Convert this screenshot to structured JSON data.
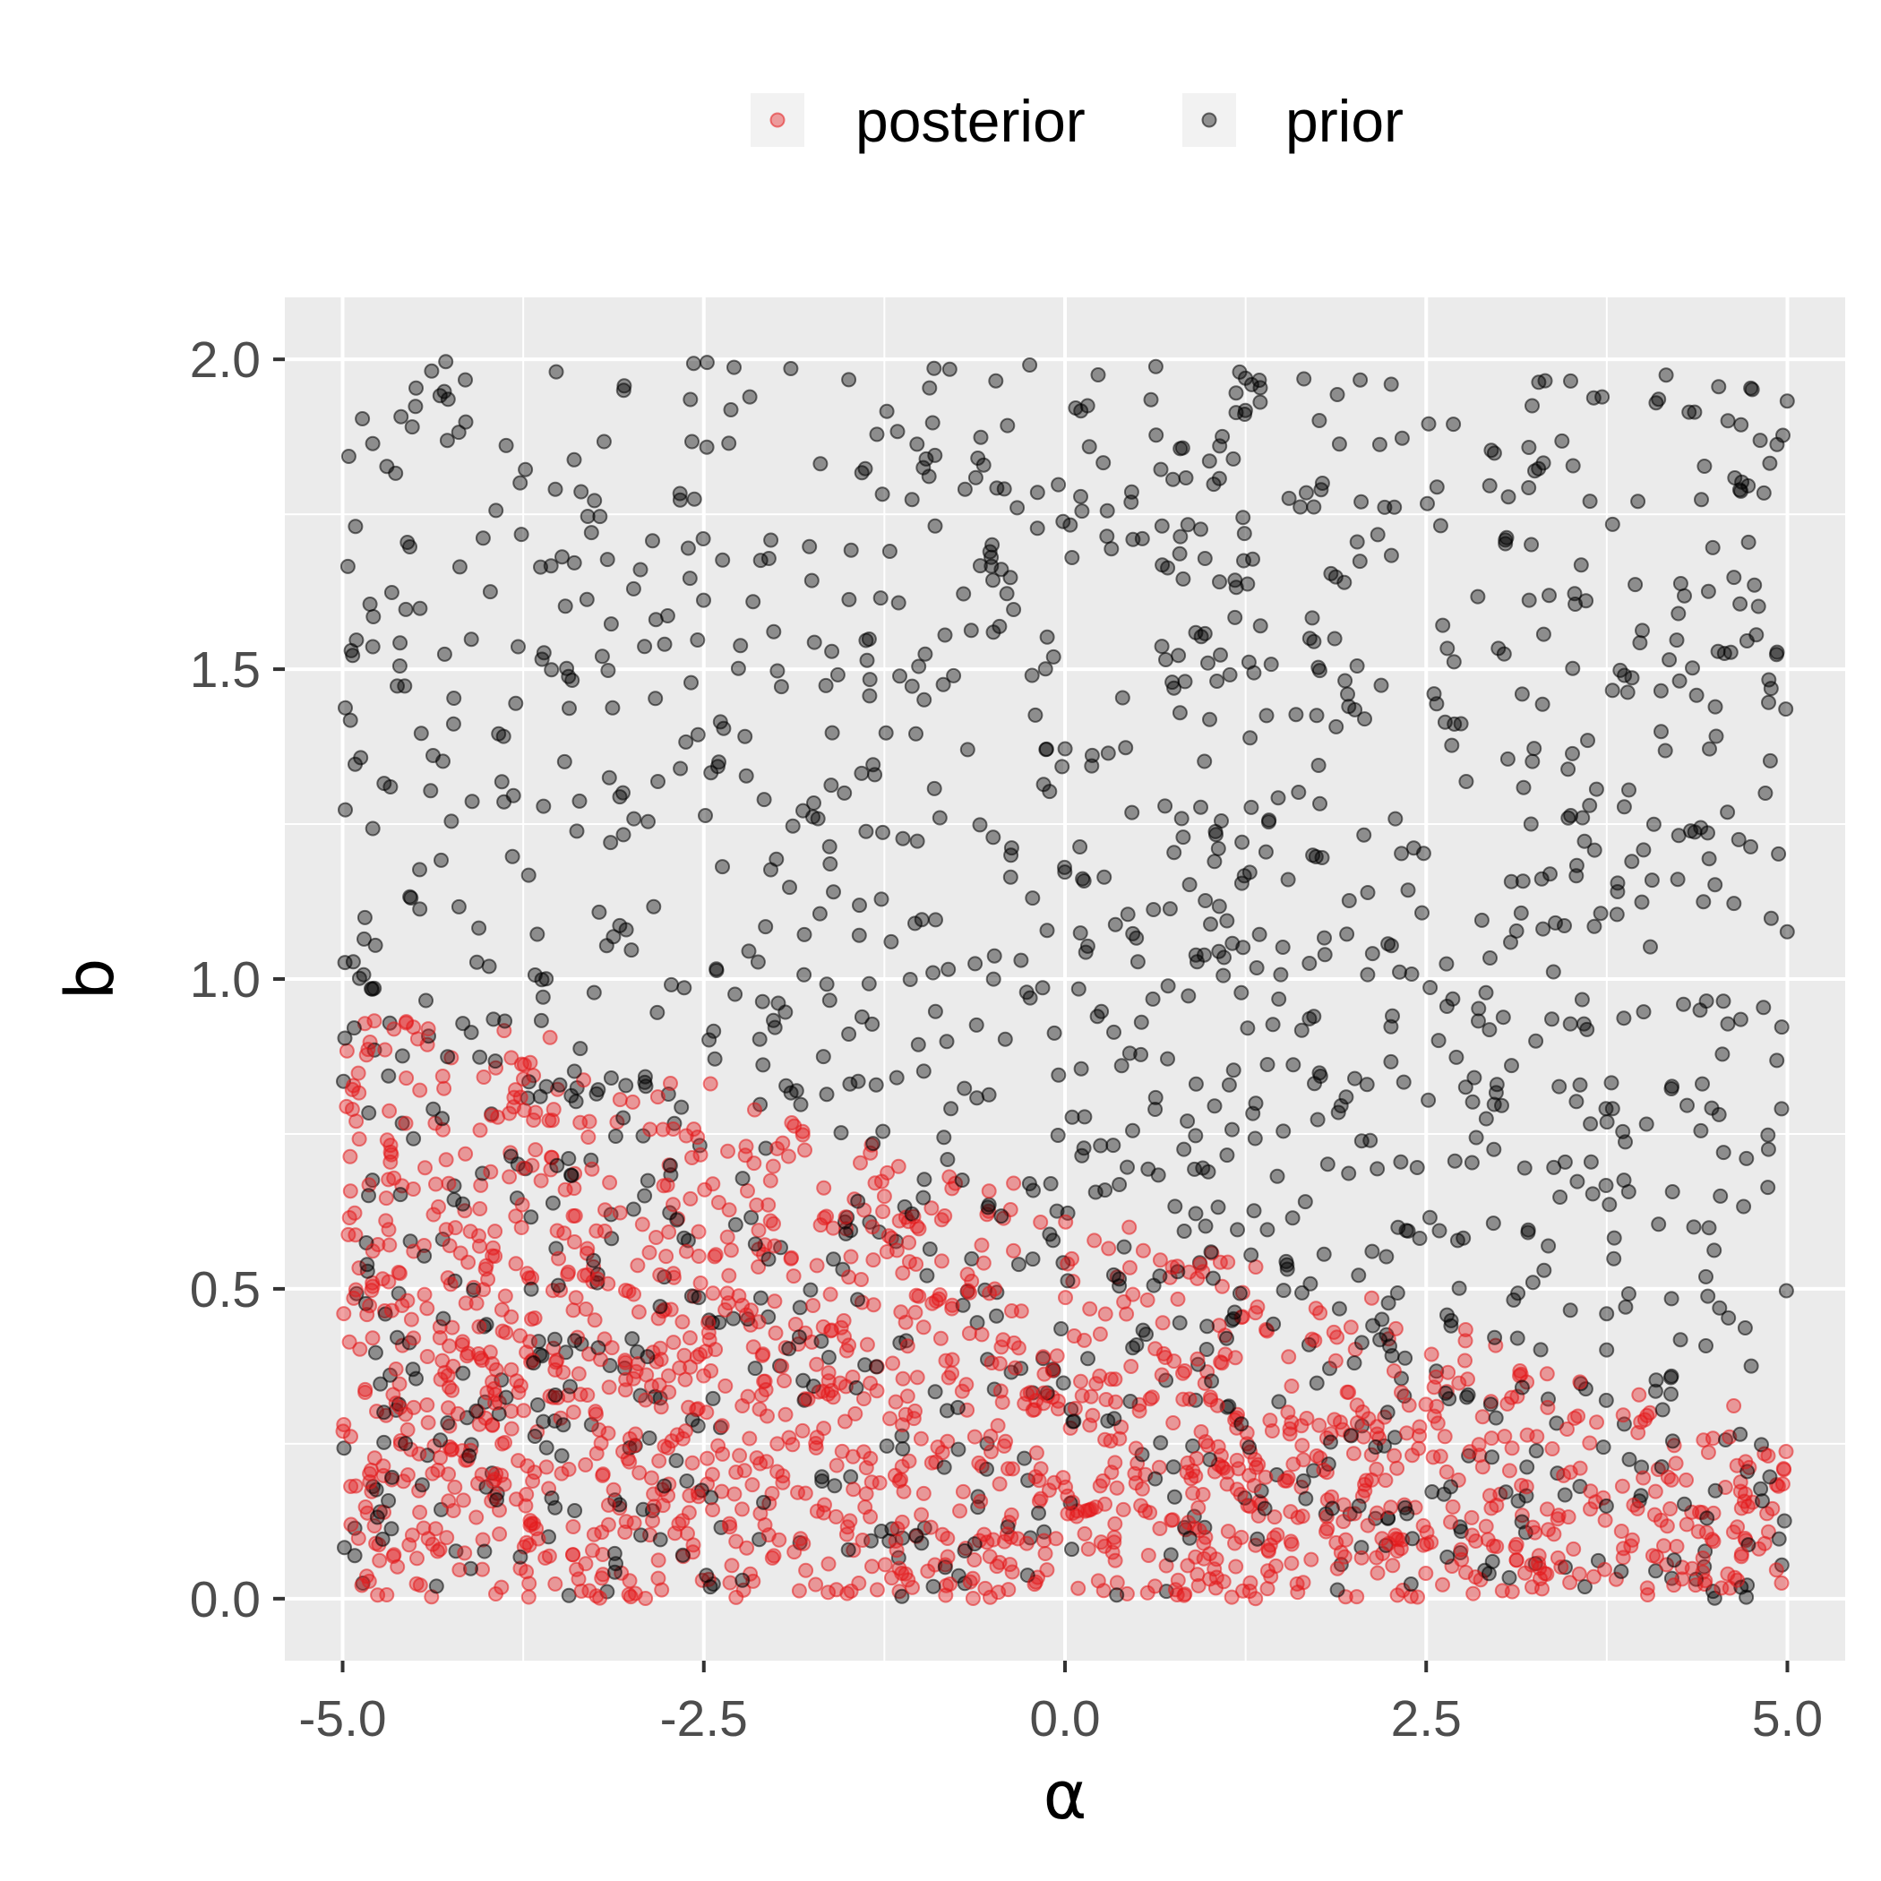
{
  "chart_data": {
    "type": "scatter",
    "xlabel": "α",
    "ylabel": "b",
    "xlim": [
      -5.4,
      5.4
    ],
    "ylim": [
      -0.1,
      2.1
    ],
    "x_ticks": [
      -5.0,
      -2.5,
      0.0,
      2.5,
      5.0
    ],
    "x_tick_labels": [
      "-5.0",
      "-2.5",
      "0.0",
      "2.5",
      "5.0"
    ],
    "y_ticks": [
      0.0,
      0.5,
      1.0,
      1.5,
      2.0
    ],
    "y_tick_labels": [
      "0.0",
      "0.5",
      "1.0",
      "1.5",
      "2.0"
    ],
    "grid": true,
    "legend_position": "top",
    "point_alpha": 0.4,
    "series": [
      {
        "name": "posterior",
        "color": "#e41a1c",
        "approx_count": 1500,
        "x_range": [
          -5.0,
          5.0
        ],
        "y_range": [
          0.0,
          1.05
        ]
      },
      {
        "name": "prior",
        "color": "#000000",
        "approx_count": 1500,
        "x_range": [
          -5.0,
          5.0
        ],
        "y_range": [
          0.0,
          2.0
        ]
      }
    ]
  }
}
